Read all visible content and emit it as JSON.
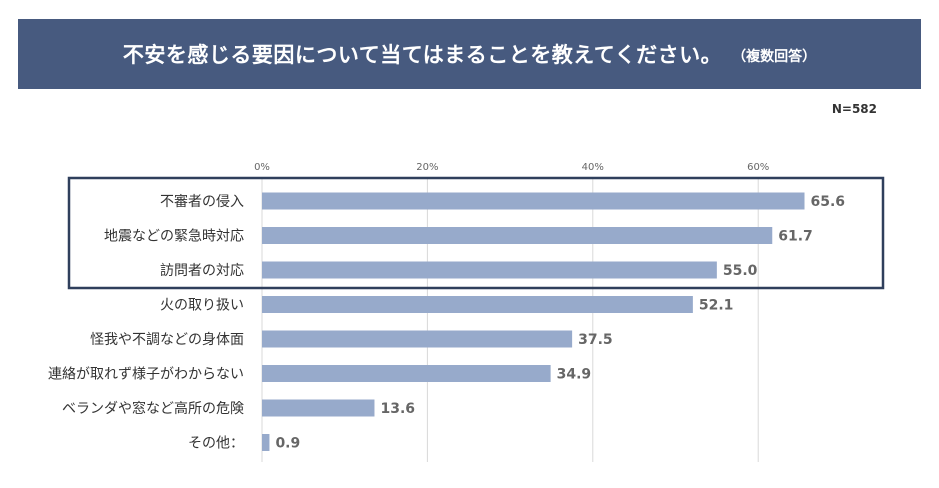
{
  "header": {
    "title": "不安を感じる要因について当てはまることを教えてください。",
    "subtitle": "（複数回答）"
  },
  "sample_size": "N=582",
  "colors": {
    "banner": "#475a7f",
    "bar": "#97aacb",
    "highlight_border": "#2f3f5c",
    "grid": "#d9d9d9"
  },
  "chart_data": {
    "type": "bar",
    "orientation": "horizontal",
    "categories": [
      "不審者の侵入",
      "地震などの緊急時対応",
      "訪問者の対応",
      "火の取り扱い",
      "怪我や不調などの身体面",
      "連絡が取れず様子がわからない",
      "ベランダや窓など高所の危険",
      "その他："
    ],
    "values": [
      65.6,
      61.7,
      55.0,
      52.1,
      37.5,
      34.9,
      13.6,
      0.9
    ],
    "value_labels": [
      "65.6",
      "61.7",
      "55.0",
      "52.1",
      "37.5",
      "34.9",
      "13.6",
      "0.9"
    ],
    "xticks": [
      0,
      20,
      40,
      60
    ],
    "xtick_labels": [
      "0%",
      "20%",
      "40%",
      "60%"
    ],
    "xlim": [
      0,
      70
    ],
    "grid": true,
    "highlighted_categories": [
      0,
      1,
      2
    ]
  }
}
